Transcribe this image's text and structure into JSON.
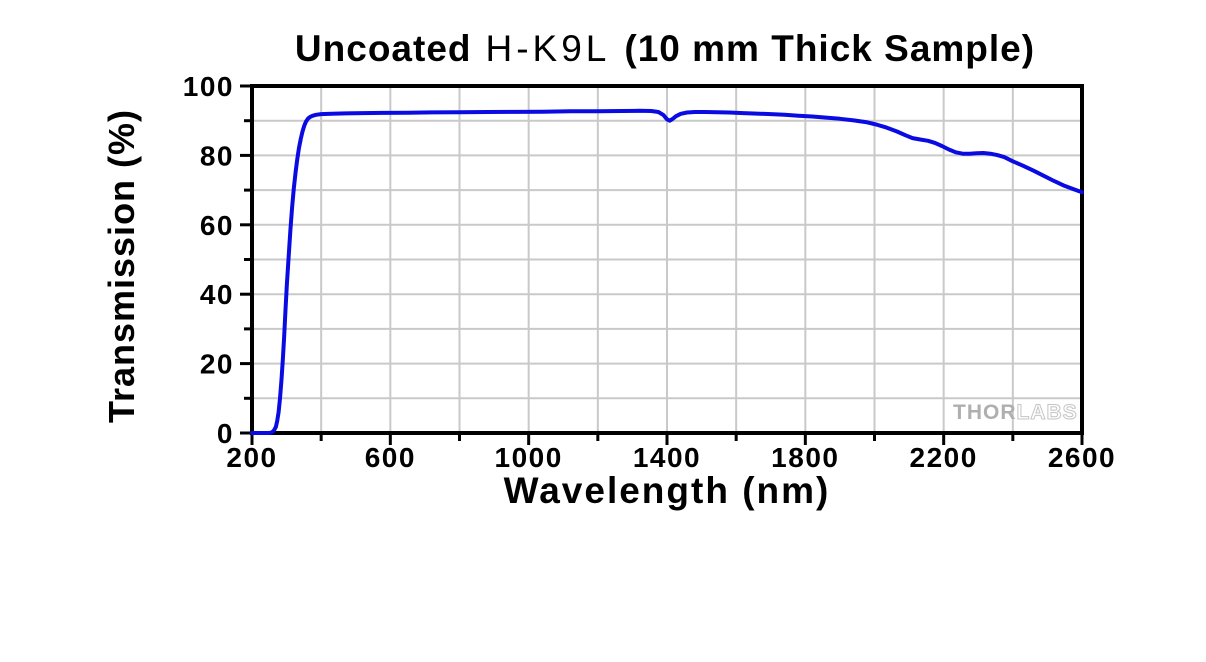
{
  "chart_data": {
    "type": "line",
    "title": "Uncoated H-K9L (10 mm Thick Sample)",
    "title_parts": {
      "prefix": "Uncoated",
      "material": "H-K9L",
      "suffix": "(10 mm Thick Sample)"
    },
    "xlabel": "Wavelength (nm)",
    "ylabel": "Transmission (%)",
    "xlim": [
      200,
      2600
    ],
    "ylim": [
      0,
      100
    ],
    "x_major_ticks": [
      200,
      600,
      1000,
      1400,
      1800,
      2200,
      2600
    ],
    "x_minor_tick_step": 200,
    "y_major_ticks": [
      0,
      20,
      40,
      60,
      80,
      100
    ],
    "y_minor_tick_step": 10,
    "grid": {
      "show": true,
      "x_step_nm": 200,
      "y_step_pct": 10,
      "color": "#c9c9c9"
    },
    "axis_color": "#000000",
    "line_color": "#0a0ae2",
    "legend": "none",
    "watermark": {
      "part1": "THOR",
      "part2": "LABS"
    },
    "series": [
      {
        "name": "Transmission",
        "x": [
          200,
          250,
          258,
          264,
          269,
          273,
          277,
          281,
          285,
          289,
          293,
          297,
          301,
          306,
          311,
          316,
          321,
          326,
          331,
          336,
          341,
          346,
          351,
          356,
          362,
          368,
          375,
          385,
          400,
          430,
          470,
          520,
          580,
          650,
          720,
          800,
          880,
          960,
          1040,
          1120,
          1200,
          1270,
          1320,
          1355,
          1375,
          1390,
          1400,
          1408,
          1416,
          1426,
          1440,
          1458,
          1480,
          1510,
          1545,
          1580,
          1620,
          1660,
          1700,
          1740,
          1780,
          1820,
          1860,
          1900,
          1940,
          1975,
          2005,
          2035,
          2065,
          2090,
          2110,
          2130,
          2155,
          2175,
          2195,
          2215,
          2235,
          2255,
          2275,
          2295,
          2315,
          2335,
          2355,
          2375,
          2400,
          2430,
          2460,
          2490,
          2520,
          2550,
          2575,
          2600
        ],
        "y": [
          0,
          0,
          0.2,
          0.8,
          1.8,
          3.5,
          6,
          10,
          15,
          21,
          28,
          35.5,
          43,
          51,
          58.5,
          65,
          70.5,
          75.2,
          79,
          82.2,
          84.8,
          86.9,
          88.5,
          89.7,
          90.6,
          91.1,
          91.4,
          91.7,
          91.9,
          92.0,
          92.1,
          92.2,
          92.25,
          92.3,
          92.4,
          92.45,
          92.5,
          92.55,
          92.6,
          92.7,
          92.75,
          92.8,
          92.85,
          92.8,
          92.5,
          91.6,
          90.4,
          90.0,
          90.5,
          91.3,
          92.0,
          92.35,
          92.5,
          92.5,
          92.45,
          92.35,
          92.2,
          92.05,
          91.9,
          91.7,
          91.45,
          91.2,
          90.9,
          90.55,
          90.1,
          89.6,
          88.9,
          88.0,
          86.9,
          85.8,
          85.0,
          84.6,
          84.2,
          83.6,
          82.7,
          81.7,
          80.9,
          80.5,
          80.5,
          80.6,
          80.7,
          80.5,
          80.1,
          79.5,
          78.3,
          77.0,
          75.6,
          74.1,
          72.6,
          71.2,
          70.3,
          69.4
        ]
      }
    ]
  }
}
